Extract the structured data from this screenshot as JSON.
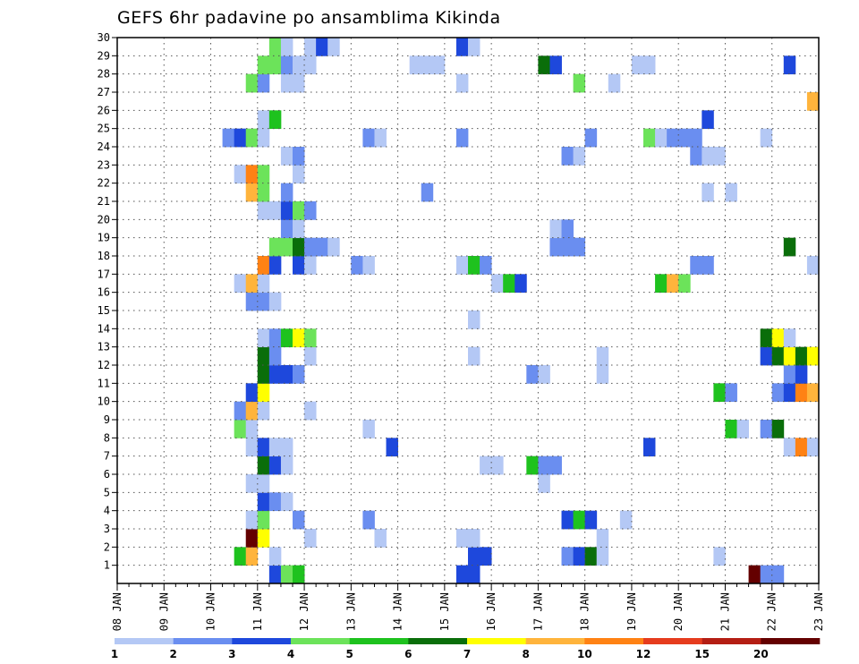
{
  "chart_data": {
    "type": "heatmap",
    "title": "GEFS 6hr padavine po ansamblima Kikinda",
    "xlabel": "",
    "ylabel": "",
    "x_ticks": [
      "08 JAN",
      "09 JAN",
      "10 JAN",
      "11 JAN",
      "12 JAN",
      "13 JAN",
      "14 JAN",
      "15 JAN",
      "16 JAN",
      "17 JAN",
      "18 JAN",
      "19 JAN",
      "20 JAN",
      "21 JAN",
      "22 JAN",
      "23 JAN"
    ],
    "x_unit": "6-hour steps from 08 JAN 00Z",
    "x_range": [
      0,
      60
    ],
    "y_ticks": [
      1,
      2,
      3,
      4,
      5,
      6,
      7,
      8,
      9,
      10,
      11,
      12,
      13,
      14,
      15,
      16,
      17,
      18,
      19,
      20,
      21,
      22,
      23,
      24,
      25,
      26,
      27,
      28,
      29,
      30
    ],
    "y_range": [
      0,
      30
    ],
    "grid": true,
    "colorbar": {
      "labels": [
        "1",
        "2",
        "3",
        "4",
        "5",
        "6",
        "7",
        "8",
        "10",
        "12",
        "15",
        "20"
      ],
      "colors": [
        "#b4c8f5",
        "#6a8ef0",
        "#1e48dc",
        "#6ce35a",
        "#1ec21e",
        "#0a6e0a",
        "#ffff00",
        "#ffb43c",
        "#ff8214",
        "#e63c1e",
        "#b41e14",
        "#640000"
      ]
    },
    "cells": [
      [
        13,
        0,
        2
      ],
      [
        14,
        0,
        3
      ],
      [
        15,
        0,
        4
      ],
      [
        29,
        0,
        2
      ],
      [
        30,
        0,
        2
      ],
      [
        54,
        0,
        11
      ],
      [
        55,
        0,
        1
      ],
      [
        56,
        0,
        1
      ],
      [
        10,
        1,
        4
      ],
      [
        11,
        1,
        7
      ],
      [
        13,
        1,
        0
      ],
      [
        30,
        1,
        2
      ],
      [
        31,
        1,
        2
      ],
      [
        38,
        1,
        1
      ],
      [
        39,
        1,
        2
      ],
      [
        40,
        1,
        5
      ],
      [
        41,
        1,
        0
      ],
      [
        51,
        1,
        0
      ],
      [
        11,
        2,
        11
      ],
      [
        12,
        2,
        6
      ],
      [
        16,
        2,
        0
      ],
      [
        22,
        2,
        0
      ],
      [
        29,
        2,
        0
      ],
      [
        30,
        2,
        0
      ],
      [
        41,
        2,
        0
      ],
      [
        11,
        3,
        0
      ],
      [
        12,
        3,
        3
      ],
      [
        15,
        3,
        1
      ],
      [
        21,
        3,
        1
      ],
      [
        38,
        3,
        2
      ],
      [
        39,
        3,
        4
      ],
      [
        40,
        3,
        2
      ],
      [
        43,
        3,
        0
      ],
      [
        12,
        4,
        2
      ],
      [
        13,
        4,
        1
      ],
      [
        14,
        4,
        0
      ],
      [
        11,
        5,
        0
      ],
      [
        12,
        5,
        0
      ],
      [
        36,
        5,
        0
      ],
      [
        12,
        6,
        5
      ],
      [
        13,
        6,
        2
      ],
      [
        14,
        6,
        0
      ],
      [
        31,
        6,
        0
      ],
      [
        32,
        6,
        0
      ],
      [
        35,
        6,
        4
      ],
      [
        36,
        6,
        1
      ],
      [
        37,
        6,
        1
      ],
      [
        11,
        7,
        0
      ],
      [
        12,
        7,
        2
      ],
      [
        13,
        7,
        0
      ],
      [
        14,
        7,
        0
      ],
      [
        23,
        7,
        2
      ],
      [
        45,
        7,
        2
      ],
      [
        57,
        7,
        0
      ],
      [
        58,
        7,
        8
      ],
      [
        59,
        7,
        0
      ],
      [
        10,
        8,
        3
      ],
      [
        11,
        8,
        0
      ],
      [
        21,
        8,
        0
      ],
      [
        52,
        8,
        4
      ],
      [
        53,
        8,
        0
      ],
      [
        55,
        8,
        1
      ],
      [
        56,
        8,
        5
      ],
      [
        10,
        9,
        1
      ],
      [
        11,
        9,
        7
      ],
      [
        12,
        9,
        0
      ],
      [
        16,
        9,
        0
      ],
      [
        11,
        10,
        2
      ],
      [
        12,
        10,
        6
      ],
      [
        51,
        10,
        4
      ],
      [
        52,
        10,
        1
      ],
      [
        56,
        10,
        1
      ],
      [
        57,
        10,
        2
      ],
      [
        58,
        10,
        8
      ],
      [
        59,
        10,
        7
      ],
      [
        12,
        11,
        5
      ],
      [
        13,
        11,
        2
      ],
      [
        14,
        11,
        2
      ],
      [
        15,
        11,
        1
      ],
      [
        35,
        11,
        1
      ],
      [
        36,
        11,
        0
      ],
      [
        41,
        11,
        0
      ],
      [
        57,
        11,
        1
      ],
      [
        58,
        11,
        2
      ],
      [
        12,
        12,
        5
      ],
      [
        13,
        12,
        1
      ],
      [
        16,
        12,
        0
      ],
      [
        30,
        12,
        0
      ],
      [
        41,
        12,
        0
      ],
      [
        55,
        12,
        2
      ],
      [
        56,
        12,
        5
      ],
      [
        57,
        12,
        6
      ],
      [
        58,
        12,
        5
      ],
      [
        59,
        12,
        6
      ],
      [
        12,
        13,
        0
      ],
      [
        13,
        13,
        1
      ],
      [
        14,
        13,
        4
      ],
      [
        15,
        13,
        6
      ],
      [
        16,
        13,
        3
      ],
      [
        55,
        13,
        5
      ],
      [
        56,
        13,
        6
      ],
      [
        57,
        13,
        0
      ],
      [
        30,
        14,
        0
      ],
      [
        11,
        15,
        1
      ],
      [
        12,
        15,
        1
      ],
      [
        13,
        15,
        0
      ],
      [
        10,
        16,
        0
      ],
      [
        11,
        16,
        7
      ],
      [
        12,
        16,
        0
      ],
      [
        32,
        16,
        0
      ],
      [
        33,
        16,
        4
      ],
      [
        34,
        16,
        2
      ],
      [
        46,
        16,
        4
      ],
      [
        47,
        16,
        7
      ],
      [
        48,
        16,
        3
      ],
      [
        12,
        17,
        8
      ],
      [
        13,
        17,
        2
      ],
      [
        15,
        17,
        2
      ],
      [
        16,
        17,
        0
      ],
      [
        20,
        17,
        1
      ],
      [
        21,
        17,
        0
      ],
      [
        29,
        17,
        0
      ],
      [
        30,
        17,
        4
      ],
      [
        31,
        17,
        1
      ],
      [
        49,
        17,
        1
      ],
      [
        50,
        17,
        1
      ],
      [
        59,
        17,
        0
      ],
      [
        13,
        18,
        3
      ],
      [
        14,
        18,
        3
      ],
      [
        15,
        18,
        5
      ],
      [
        16,
        18,
        1
      ],
      [
        17,
        18,
        1
      ],
      [
        18,
        18,
        0
      ],
      [
        37,
        18,
        1
      ],
      [
        38,
        18,
        1
      ],
      [
        39,
        18,
        1
      ],
      [
        57,
        18,
        5
      ],
      [
        14,
        19,
        1
      ],
      [
        15,
        19,
        0
      ],
      [
        37,
        19,
        0
      ],
      [
        38,
        19,
        1
      ],
      [
        12,
        20,
        0
      ],
      [
        13,
        20,
        0
      ],
      [
        14,
        20,
        2
      ],
      [
        15,
        20,
        3
      ],
      [
        16,
        20,
        1
      ],
      [
        11,
        21,
        7
      ],
      [
        12,
        21,
        3
      ],
      [
        14,
        21,
        1
      ],
      [
        26,
        21,
        1
      ],
      [
        50,
        21,
        0
      ],
      [
        52,
        21,
        0
      ],
      [
        10,
        22,
        0
      ],
      [
        11,
        22,
        8
      ],
      [
        12,
        22,
        3
      ],
      [
        15,
        22,
        0
      ],
      [
        14,
        23,
        0
      ],
      [
        15,
        23,
        1
      ],
      [
        38,
        23,
        1
      ],
      [
        39,
        23,
        0
      ],
      [
        49,
        23,
        1
      ],
      [
        50,
        23,
        0
      ],
      [
        51,
        23,
        0
      ],
      [
        9,
        24,
        1
      ],
      [
        10,
        24,
        2
      ],
      [
        11,
        24,
        3
      ],
      [
        12,
        24,
        0
      ],
      [
        21,
        24,
        1
      ],
      [
        22,
        24,
        0
      ],
      [
        29,
        24,
        1
      ],
      [
        40,
        24,
        1
      ],
      [
        45,
        24,
        3
      ],
      [
        46,
        24,
        0
      ],
      [
        47,
        24,
        1
      ],
      [
        48,
        24,
        1
      ],
      [
        49,
        24,
        1
      ],
      [
        55,
        24,
        0
      ],
      [
        12,
        25,
        0
      ],
      [
        13,
        25,
        4
      ],
      [
        50,
        25,
        2
      ],
      [
        59,
        26,
        7
      ],
      [
        11,
        27,
        3
      ],
      [
        12,
        27,
        1
      ],
      [
        14,
        27,
        0
      ],
      [
        15,
        27,
        0
      ],
      [
        29,
        27,
        0
      ],
      [
        39,
        27,
        3
      ],
      [
        42,
        27,
        0
      ],
      [
        12,
        28,
        3
      ],
      [
        13,
        28,
        3
      ],
      [
        14,
        28,
        1
      ],
      [
        15,
        28,
        0
      ],
      [
        16,
        28,
        0
      ],
      [
        25,
        28,
        0
      ],
      [
        26,
        28,
        0
      ],
      [
        27,
        28,
        0
      ],
      [
        36,
        28,
        5
      ],
      [
        37,
        28,
        2
      ],
      [
        44,
        28,
        0
      ],
      [
        45,
        28,
        0
      ],
      [
        57,
        28,
        2
      ],
      [
        13,
        29,
        3
      ],
      [
        14,
        29,
        0
      ],
      [
        16,
        29,
        0
      ],
      [
        17,
        29,
        2
      ],
      [
        18,
        29,
        0
      ],
      [
        29,
        29,
        2
      ],
      [
        30,
        29,
        0
      ]
    ]
  }
}
